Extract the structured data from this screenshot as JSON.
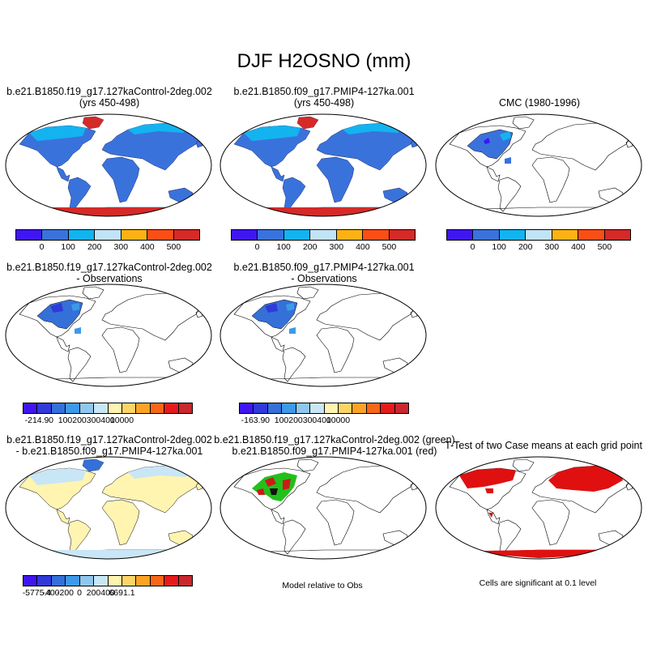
{
  "title": "DJF H2OSNO (mm)",
  "panels": {
    "case1": {
      "line1": "b.e21.B1850.f19_g17.127kaControl-2deg.002",
      "line2": "(yrs 450-498)"
    },
    "case2": {
      "line1": "b.e21.B1850.f09_g17.PMIP4-127ka.001",
      "line2": "(yrs 450-498)"
    },
    "obs": {
      "line1": "CMC (1980-1996)"
    },
    "diff1": {
      "line1": "b.e21.B1850.f19_g17.127kaControl-2deg.002",
      "line2": "- Observations"
    },
    "diff2": {
      "line1": "b.e21.B1850.f09_g17.PMIP4-127ka.001",
      "line2": "- Observations"
    },
    "diff3": {
      "line1": "b.e21.B1850.f19_g17.127kaControl-2deg.002",
      "line2": "- b.e21.B1850.f09_g17.PMIP4-127ka.001"
    },
    "overlay": {
      "line1": "b.e21.B1850.f19_g17.127kaControl-2deg.002 (green)",
      "line2": "b.e21.B1850.f09_g17.PMIP4-127ka.001 (red)",
      "note": "Model relative to Obs"
    },
    "ttest": {
      "line1": "T-Test of two Case means at each grid point",
      "note": "Cells are significant at 0.1 level"
    }
  },
  "colorbars": {
    "abs": {
      "colors": [
        "#3f16f0",
        "#3a72dc",
        "#13b3f0",
        "#c2e2f5",
        "#fcb214",
        "#fb4e16",
        "#d42a28"
      ],
      "labels": [
        "0",
        "100",
        "200",
        "300",
        "400",
        "500"
      ]
    },
    "diff_obs1": {
      "colors": [
        "#3f16f0",
        "#2f3ad8",
        "#3470d8",
        "#3d9ae8",
        "#8fc7ee",
        "#c8e6f6",
        "#fff4b0",
        "#fed467",
        "#fca326",
        "#f76717",
        "#e51b1b",
        "#c8282e"
      ],
      "labels": [
        "-214.9",
        "0",
        "100",
        "200",
        "300",
        "400",
        "10000"
      ]
    },
    "diff_obs2": {
      "colors": [
        "#3f16f0",
        "#2f3ad8",
        "#3470d8",
        "#3d9ae8",
        "#8fc7ee",
        "#c8e6f6",
        "#fff4b0",
        "#fed467",
        "#fca326",
        "#f76717",
        "#e51b1b",
        "#c8282e"
      ],
      "labels": [
        "-163.9",
        "0",
        "100",
        "200",
        "300",
        "400",
        "10000"
      ]
    },
    "diff_models": {
      "colors": [
        "#3f16f0",
        "#2f3ad8",
        "#3470d8",
        "#3d9ae8",
        "#8fc7ee",
        "#c8e6f6",
        "#fff4b0",
        "#fed467",
        "#fca326",
        "#f76717",
        "#e51b1b",
        "#c8282e"
      ],
      "labels": [
        "-5775.4",
        "-400",
        "-200",
        "0",
        "200",
        "400",
        "6691.1"
      ]
    }
  }
}
